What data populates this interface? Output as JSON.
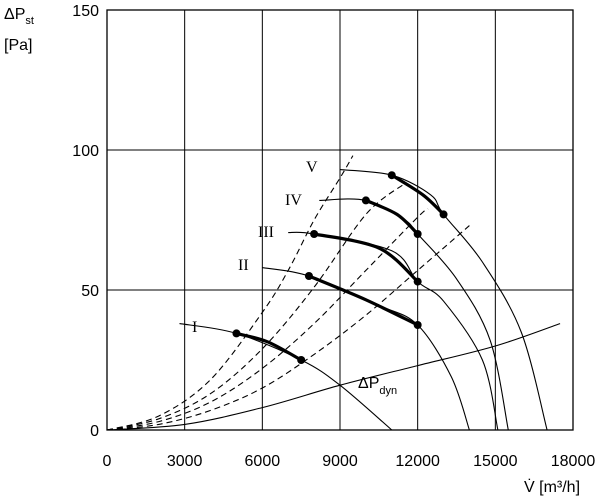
{
  "chart_data": {
    "type": "line",
    "ylabel_main": "ΔP",
    "ylabel_sub": "st",
    "yunit": "[Pa]",
    "xlabel": "V̇ [m³/h]",
    "xlim": [
      0,
      18000
    ],
    "ylim": [
      0,
      150
    ],
    "xticks": [
      0,
      3000,
      6000,
      9000,
      12000,
      15000,
      18000
    ],
    "yticks": [
      0,
      50,
      100,
      150
    ],
    "grid": true,
    "series": [
      {
        "name": "I",
        "x": [
          2800,
          5000,
          7500,
          9000,
          11000
        ],
        "y": [
          38,
          34.5,
          25,
          16,
          0
        ],
        "op_range": [
          [
            5000,
            34.5
          ],
          [
            6200,
            31.5
          ],
          [
            7500,
            25
          ]
        ]
      },
      {
        "name": "II",
        "x": [
          6000,
          7800,
          10500,
          12000,
          13300,
          14000
        ],
        "y": [
          58,
          55,
          44.5,
          37.5,
          19,
          0
        ],
        "op_range": [
          [
            7800,
            55
          ],
          [
            10000,
            46.5
          ],
          [
            12000,
            37.5
          ]
        ]
      },
      {
        "name": "III",
        "x": [
          7000,
          8000,
          11000,
          12000,
          13000,
          14500,
          15100
        ],
        "y": [
          70.5,
          70,
          64,
          53,
          46,
          25,
          0
        ],
        "op_range": [
          [
            8000,
            70
          ],
          [
            10500,
            65
          ],
          [
            12000,
            53
          ]
        ]
      },
      {
        "name": "IV",
        "x": [
          8200,
          10000,
          11500,
          12000,
          13500,
          14800,
          15500
        ],
        "y": [
          82,
          82,
          75,
          70,
          54,
          32,
          0
        ],
        "op_range": [
          [
            10000,
            82
          ],
          [
            11200,
            77
          ],
          [
            12000,
            70
          ]
        ]
      },
      {
        "name": "V",
        "x": [
          9000,
          11000,
          12500,
          13000,
          14500,
          16000,
          17000
        ],
        "y": [
          93,
          91,
          84,
          77,
          60,
          35,
          0
        ],
        "op_range": [
          [
            11000,
            91
          ],
          [
            12200,
            84
          ],
          [
            13000,
            77
          ]
        ]
      },
      {
        "name": "ΔP_dyn",
        "x": [
          0,
          3000,
          6000,
          9000,
          12000,
          15000,
          17500
        ],
        "y": [
          0,
          2,
          8,
          16,
          23,
          30,
          38
        ]
      }
    ],
    "system_curves": [
      {
        "x": [
          0,
          2000,
          4000,
          6000,
          7000,
          8000,
          9000,
          9500
        ],
        "y": [
          0,
          5,
          18,
          42,
          57,
          75,
          90,
          98
        ]
      },
      {
        "x": [
          0,
          2000,
          4000,
          6000,
          8000,
          10000,
          11500
        ],
        "y": [
          0,
          4,
          13,
          29,
          51,
          77,
          88
        ]
      },
      {
        "x": [
          0,
          2000,
          4000,
          6000,
          8000,
          10000,
          12000,
          12400
        ],
        "y": [
          0,
          3,
          10,
          22,
          38,
          57,
          76,
          79
        ]
      },
      {
        "x": [
          0,
          2000,
          4000,
          6000,
          8000,
          10000,
          12000,
          14000
        ],
        "y": [
          0,
          2,
          7,
          15,
          27,
          41,
          57,
          73
        ]
      }
    ],
    "labels": {
      "I": "I",
      "II": "II",
      "III": "III",
      "IV": "IV",
      "V": "V",
      "dyn_main": "ΔP",
      "dyn_sub": "dyn"
    }
  }
}
